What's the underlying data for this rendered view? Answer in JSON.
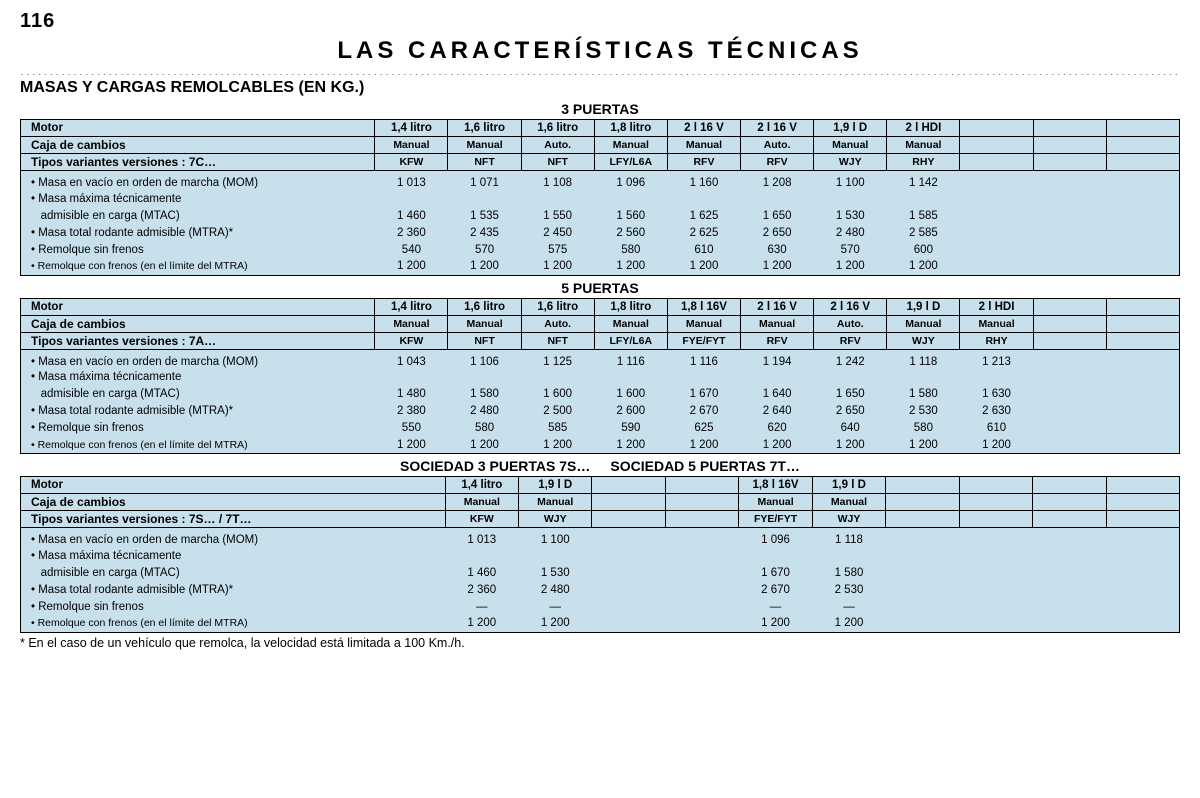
{
  "page_number": "116",
  "main_title": "LAS  CARACTERÍSTICAS  TÉCNICAS",
  "subtitle": "MASAS Y CARGAS REMOLCABLES (EN KG.)",
  "footnote": "* En el caso de un vehículo que remolca, la velocidad está limitada a 100 Km./h.",
  "row_labels": {
    "motor": "Motor",
    "gearbox": "Caja de cambios",
    "mom": "• Masa en vacío en orden de marcha (MOM)",
    "mtac_a": "• Masa máxima técnicamente",
    "mtac_b": "   admisible en carga (MTAC)",
    "mtra": "• Masa total rodante admisible (MTRA)*",
    "rsf": "• Remolque sin frenos",
    "rcf": "• Remolque con frenos (en el límite del MTRA)"
  },
  "colors": {
    "table_bg": "#c8e0ec",
    "border": "#000000"
  },
  "t1": {
    "title": "3 PUERTAS",
    "variant_label": "Tipos variantes versiones : 7C…",
    "motors": [
      "1,4 litro",
      "1,6 litro",
      "1,6 litro",
      "1,8 litro",
      "2 l 16 V",
      "2 l 16 V",
      "1,9 l D",
      "2 l HDI",
      "",
      "",
      ""
    ],
    "gearbox": [
      "Manual",
      "Manual",
      "Auto.",
      "Manual",
      "Manual",
      "Auto.",
      "Manual",
      "Manual",
      "",
      "",
      ""
    ],
    "codes": [
      "KFW",
      "NFT",
      "NFT",
      "LFY/L6A",
      "RFV",
      "RFV",
      "WJY",
      "RHY",
      "",
      "",
      ""
    ],
    "mom": [
      "1 013",
      "1 071",
      "1 108",
      "1 096",
      "1 160",
      "1 208",
      "1 100",
      "1 142",
      "",
      "",
      ""
    ],
    "mtac": [
      "1 460",
      "1 535",
      "1 550",
      "1 560",
      "1 625",
      "1 650",
      "1 530",
      "1 585",
      "",
      "",
      ""
    ],
    "mtra": [
      "2 360",
      "2 435",
      "2 450",
      "2 560",
      "2 625",
      "2 650",
      "2 480",
      "2 585",
      "",
      "",
      ""
    ],
    "rsf": [
      "540",
      "570",
      "575",
      "580",
      "610",
      "630",
      "570",
      "600",
      "",
      "",
      ""
    ],
    "rcf": [
      "1 200",
      "1 200",
      "1 200",
      "1 200",
      "1 200",
      "1 200",
      "1 200",
      "1 200",
      "",
      "",
      ""
    ]
  },
  "t2": {
    "title": "5 PUERTAS",
    "variant_label": "Tipos variantes versiones : 7A…",
    "motors": [
      "1,4 litro",
      "1,6 litro",
      "1,6 litro",
      "1,8 litro",
      "1,8 l 16V",
      "2 l 16 V",
      "2 l 16 V",
      "1,9 l D",
      "2 l HDI",
      "",
      ""
    ],
    "gearbox": [
      "Manual",
      "Manual",
      "Auto.",
      "Manual",
      "Manual",
      "Manual",
      "Auto.",
      "Manual",
      "Manual",
      "",
      ""
    ],
    "codes": [
      "KFW",
      "NFT",
      "NFT",
      "LFY/L6A",
      "FYE/FYT",
      "RFV",
      "RFV",
      "WJY",
      "RHY",
      "",
      ""
    ],
    "mom": [
      "1 043",
      "1 106",
      "1 125",
      "1 116",
      "1 116",
      "1 194",
      "1 242",
      "1 118",
      "1 213",
      "",
      ""
    ],
    "mtac": [
      "1 480",
      "1 580",
      "1 600",
      "1 600",
      "1 670",
      "1 640",
      "1 650",
      "1 580",
      "1 630",
      "",
      ""
    ],
    "mtra": [
      "2 380",
      "2 480",
      "2 500",
      "2 600",
      "2 670",
      "2 640",
      "2 650",
      "2 530",
      "2 630",
      "",
      ""
    ],
    "rsf": [
      "550",
      "580",
      "585",
      "590",
      "625",
      "620",
      "640",
      "580",
      "610",
      "",
      ""
    ],
    "rcf": [
      "1 200",
      "1 200",
      "1 200",
      "1 200",
      "1 200",
      "1 200",
      "1 200",
      "1 200",
      "1 200",
      "",
      ""
    ]
  },
  "t3": {
    "title_a": "SOCIEDAD 3 PUERTAS 7S…",
    "title_b": "SOCIEDAD 5 PUERTAS 7T…",
    "variant_label": "Tipos variantes versiones : 7S… / 7T…",
    "motors": [
      "1,4 litro",
      "1,9 l D",
      "",
      "",
      "1,8 l 16V",
      "1,9 l D",
      "",
      "",
      "",
      ""
    ],
    "gearbox": [
      "Manual",
      "Manual",
      "",
      "",
      "Manual",
      "Manual",
      "",
      "",
      "",
      ""
    ],
    "codes": [
      "KFW",
      "WJY",
      "",
      "",
      "FYE/FYT",
      "WJY",
      "",
      "",
      "",
      ""
    ],
    "mom": [
      "1 013",
      "1 100",
      "",
      "",
      "1 096",
      "1 118",
      "",
      "",
      "",
      ""
    ],
    "mtac": [
      "1 460",
      "1 530",
      "",
      "",
      "1 670",
      "1 580",
      "",
      "",
      "",
      ""
    ],
    "mtra": [
      "2 360",
      "2  480",
      "",
      "",
      "2 670",
      "2 530",
      "",
      "",
      "",
      ""
    ],
    "rsf": [
      "—",
      "—",
      "",
      "",
      "—",
      "—",
      "",
      "",
      "",
      ""
    ],
    "rcf": [
      "1 200",
      "1 200",
      "",
      "",
      "1 200",
      "1 200",
      "",
      "",
      "",
      ""
    ]
  }
}
